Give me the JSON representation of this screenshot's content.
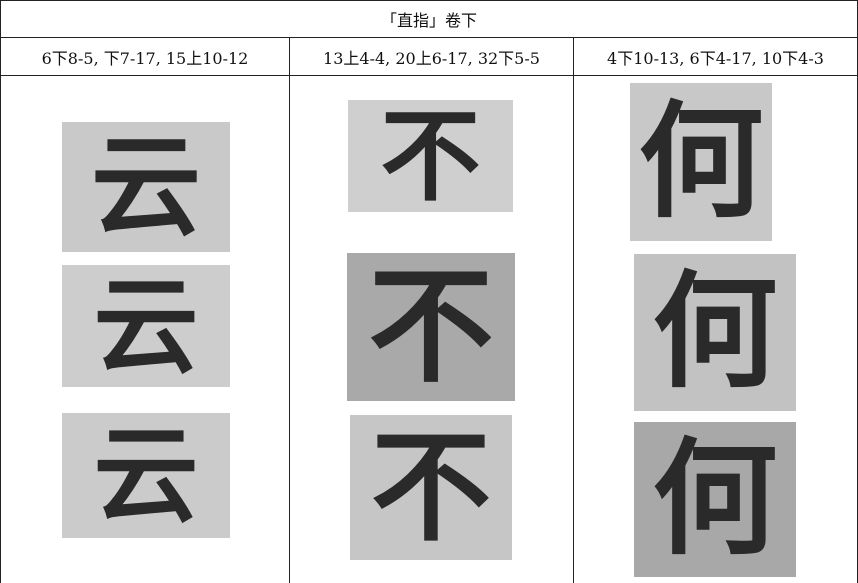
{
  "table": {
    "title": "「直指」卷下",
    "columns": [
      {
        "heading": "6下8-5, 下7-17, 15上10-12",
        "glyph": "云"
      },
      {
        "heading": "13上4-4, 20上6-17, 32下5-5",
        "glyph": "不"
      },
      {
        "heading": "4下10-13, 6下4-17, 10下4-3",
        "glyph": "何"
      }
    ]
  }
}
